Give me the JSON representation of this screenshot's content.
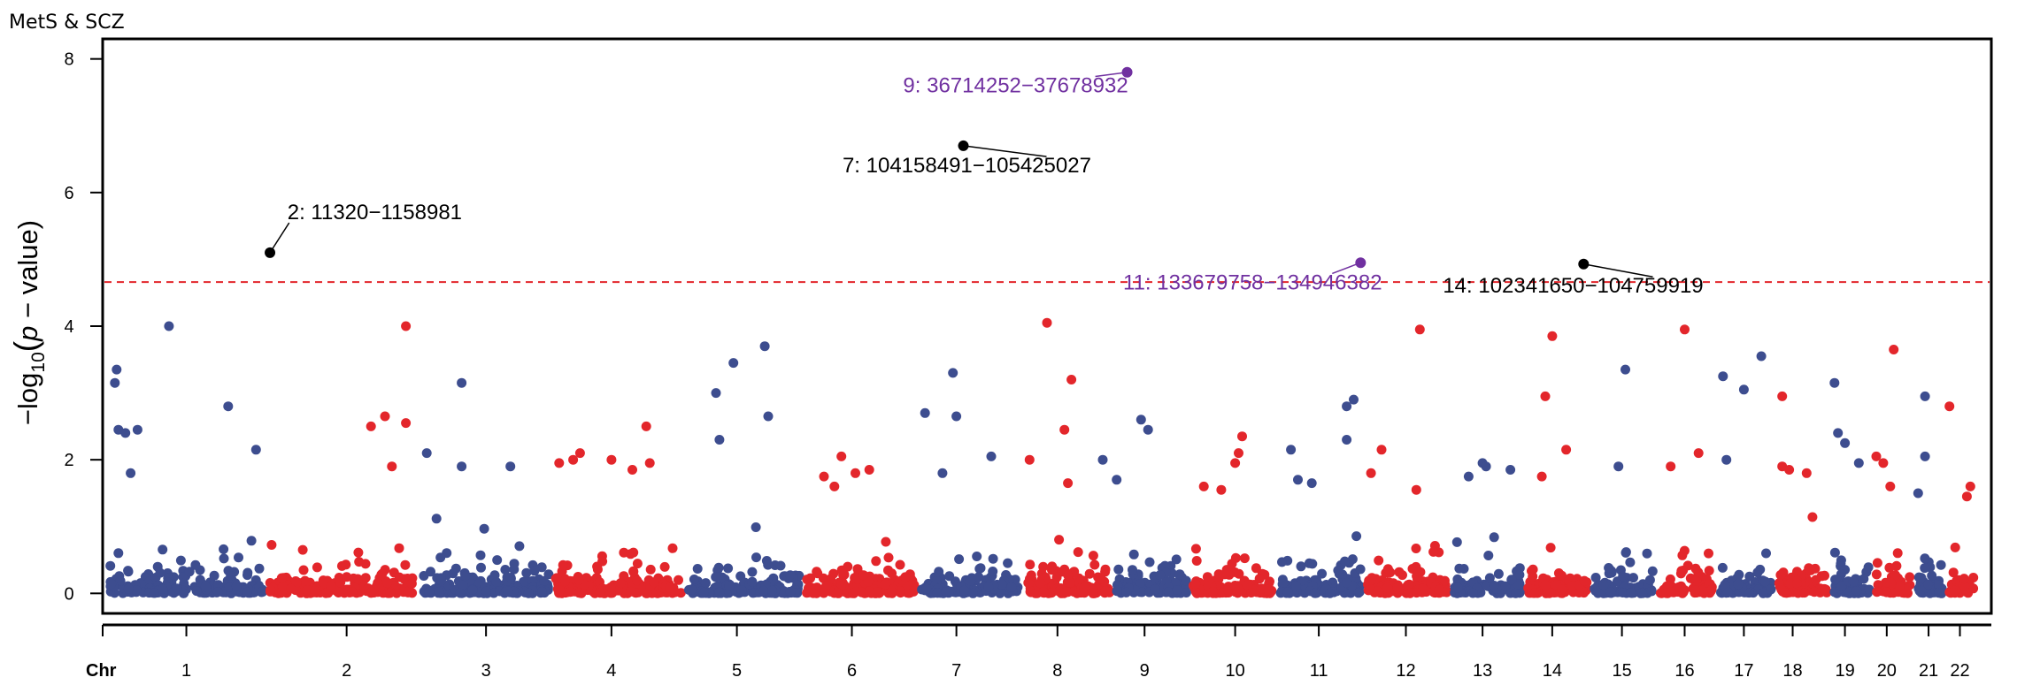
{
  "title": "MetS & SCZ",
  "colors": {
    "odd": "#3d4d8f",
    "even": "#e3262b",
    "highlight": "#7030a0",
    "threshold": "#e3262b",
    "axis": "#000000"
  },
  "chart_data": {
    "type": "scatter",
    "title": "MetS & SCZ",
    "ylabel": "−log10(p − value)",
    "ylabel_parts": {
      "minus": "−",
      "log": "log",
      "sub": "10",
      "open": "(",
      "p": "p",
      "rest": " − value)"
    },
    "xaxis_title": "Chr",
    "ylim": [
      -0.3,
      8.3
    ],
    "yticks": [
      0,
      2,
      4,
      6,
      8
    ],
    "threshold": 4.66,
    "chromosomes": [
      {
        "chr": "1",
        "start": 0,
        "end": 4.6,
        "label_at": 2.3
      },
      {
        "chr": "2",
        "start": 4.6,
        "end": 9.0,
        "label_at": 6.9
      },
      {
        "chr": "3",
        "start": 9.0,
        "end": 12.8,
        "label_at": 10.9
      },
      {
        "chr": "4",
        "start": 12.8,
        "end": 16.6,
        "label_at": 14.5
      },
      {
        "chr": "5",
        "start": 16.6,
        "end": 20.0,
        "label_at": 18.1
      },
      {
        "chr": "6",
        "start": 20.0,
        "end": 23.3,
        "label_at": 21.4
      },
      {
        "chr": "7",
        "start": 23.3,
        "end": 26.3,
        "label_at": 24.4
      },
      {
        "chr": "8",
        "start": 26.3,
        "end": 28.9,
        "label_at": 27.3
      },
      {
        "chr": "9",
        "start": 28.9,
        "end": 31.1,
        "label_at": 29.8
      },
      {
        "chr": "10",
        "start": 31.1,
        "end": 33.6,
        "label_at": 32.4
      },
      {
        "chr": "11",
        "start": 33.6,
        "end": 36.1,
        "label_at": 34.8
      },
      {
        "chr": "12",
        "start": 36.1,
        "end": 38.6,
        "label_at": 37.3
      },
      {
        "chr": "13",
        "start": 38.6,
        "end": 40.7,
        "label_at": 39.5
      },
      {
        "chr": "14",
        "start": 40.7,
        "end": 42.6,
        "label_at": 41.5
      },
      {
        "chr": "15",
        "start": 42.6,
        "end": 44.5,
        "label_at": 43.5
      },
      {
        "chr": "16",
        "start": 44.5,
        "end": 46.2,
        "label_at": 45.3
      },
      {
        "chr": "17",
        "start": 46.2,
        "end": 47.9,
        "label_at": 47.0
      },
      {
        "chr": "18",
        "start": 47.9,
        "end": 49.5,
        "label_at": 48.4
      },
      {
        "chr": "19",
        "start": 49.5,
        "end": 50.7,
        "label_at": 49.9
      },
      {
        "chr": "20",
        "start": 50.7,
        "end": 51.9,
        "label_at": 51.1
      },
      {
        "chr": "21",
        "start": 51.9,
        "end": 52.8,
        "label_at": 52.3
      },
      {
        "chr": "22",
        "start": 52.8,
        "end": 53.7,
        "label_at": 53.2
      }
    ],
    "peaks": [
      {
        "chr": "1",
        "x": 0.3,
        "y": 3.35
      },
      {
        "chr": "1",
        "x": 0.25,
        "y": 3.15
      },
      {
        "chr": "1",
        "x": 0.35,
        "y": 2.45
      },
      {
        "chr": "1",
        "x": 0.55,
        "y": 2.4
      },
      {
        "chr": "1",
        "x": 0.9,
        "y": 2.45
      },
      {
        "chr": "1",
        "x": 0.7,
        "y": 1.8
      },
      {
        "chr": "1",
        "x": 1.8,
        "y": 4.0
      },
      {
        "chr": "1",
        "x": 3.5,
        "y": 2.8
      },
      {
        "chr": "1",
        "x": 4.3,
        "y": 2.15
      },
      {
        "chr": "2",
        "x": 7.6,
        "y": 2.5
      },
      {
        "chr": "2",
        "x": 8.0,
        "y": 2.65
      },
      {
        "chr": "2",
        "x": 8.6,
        "y": 4.0
      },
      {
        "chr": "2",
        "x": 8.6,
        "y": 2.55
      },
      {
        "chr": "2",
        "x": 8.2,
        "y": 1.9
      },
      {
        "chr": "3",
        "x": 9.2,
        "y": 2.1
      },
      {
        "chr": "3",
        "x": 10.2,
        "y": 1.9
      },
      {
        "chr": "3",
        "x": 10.2,
        "y": 3.15
      },
      {
        "chr": "3",
        "x": 11.6,
        "y": 1.9
      },
      {
        "chr": "4",
        "x": 13.0,
        "y": 1.95
      },
      {
        "chr": "4",
        "x": 13.4,
        "y": 2.0
      },
      {
        "chr": "4",
        "x": 13.6,
        "y": 2.1
      },
      {
        "chr": "4",
        "x": 14.5,
        "y": 2.0
      },
      {
        "chr": "4",
        "x": 15.1,
        "y": 1.85
      },
      {
        "chr": "4",
        "x": 15.5,
        "y": 2.5
      },
      {
        "chr": "4",
        "x": 15.6,
        "y": 1.95
      },
      {
        "chr": "5",
        "x": 17.5,
        "y": 3.0
      },
      {
        "chr": "5",
        "x": 18.0,
        "y": 3.45
      },
      {
        "chr": "5",
        "x": 17.6,
        "y": 2.3
      },
      {
        "chr": "5",
        "x": 18.9,
        "y": 3.7
      },
      {
        "chr": "5",
        "x": 19.0,
        "y": 2.65
      },
      {
        "chr": "6",
        "x": 20.6,
        "y": 1.75
      },
      {
        "chr": "6",
        "x": 20.9,
        "y": 1.6
      },
      {
        "chr": "6",
        "x": 21.1,
        "y": 2.05
      },
      {
        "chr": "6",
        "x": 21.5,
        "y": 1.8
      },
      {
        "chr": "6",
        "x": 21.9,
        "y": 1.85
      },
      {
        "chr": "7",
        "x": 23.5,
        "y": 2.7
      },
      {
        "chr": "7",
        "x": 24.3,
        "y": 3.3
      },
      {
        "chr": "7",
        "x": 24.4,
        "y": 2.65
      },
      {
        "chr": "7",
        "x": 24.0,
        "y": 1.8
      },
      {
        "chr": "7",
        "x": 25.4,
        "y": 2.05
      },
      {
        "chr": "8",
        "x": 26.5,
        "y": 2.0
      },
      {
        "chr": "8",
        "x": 27.0,
        "y": 4.05
      },
      {
        "chr": "8",
        "x": 27.7,
        "y": 3.2
      },
      {
        "chr": "8",
        "x": 27.5,
        "y": 2.45
      },
      {
        "chr": "8",
        "x": 27.6,
        "y": 1.65
      },
      {
        "chr": "9",
        "x": 28.6,
        "y": 2.0
      },
      {
        "chr": "9",
        "x": 29.0,
        "y": 1.7
      },
      {
        "chr": "9",
        "x": 29.7,
        "y": 2.6
      },
      {
        "chr": "9",
        "x": 29.9,
        "y": 2.45
      },
      {
        "chr": "10",
        "x": 31.5,
        "y": 1.6
      },
      {
        "chr": "10",
        "x": 32.0,
        "y": 1.55
      },
      {
        "chr": "10",
        "x": 32.6,
        "y": 2.35
      },
      {
        "chr": "10",
        "x": 32.5,
        "y": 2.1
      },
      {
        "chr": "10",
        "x": 32.4,
        "y": 1.95
      },
      {
        "chr": "11",
        "x": 34.0,
        "y": 2.15
      },
      {
        "chr": "11",
        "x": 34.2,
        "y": 1.7
      },
      {
        "chr": "11",
        "x": 34.6,
        "y": 1.65
      },
      {
        "chr": "11",
        "x": 35.6,
        "y": 2.8
      },
      {
        "chr": "11",
        "x": 35.8,
        "y": 2.9
      },
      {
        "chr": "11",
        "x": 35.6,
        "y": 2.3
      },
      {
        "chr": "12",
        "x": 36.3,
        "y": 1.8
      },
      {
        "chr": "12",
        "x": 36.6,
        "y": 2.15
      },
      {
        "chr": "12",
        "x": 37.7,
        "y": 3.95
      },
      {
        "chr": "12",
        "x": 37.6,
        "y": 1.55
      },
      {
        "chr": "13",
        "x": 39.1,
        "y": 1.75
      },
      {
        "chr": "13",
        "x": 39.5,
        "y": 1.95
      },
      {
        "chr": "13",
        "x": 39.6,
        "y": 1.9
      },
      {
        "chr": "13",
        "x": 40.3,
        "y": 1.85
      },
      {
        "chr": "14",
        "x": 41.3,
        "y": 2.95
      },
      {
        "chr": "14",
        "x": 41.5,
        "y": 3.85
      },
      {
        "chr": "14",
        "x": 41.9,
        "y": 2.15
      },
      {
        "chr": "14",
        "x": 41.2,
        "y": 1.75
      },
      {
        "chr": "15",
        "x": 43.6,
        "y": 3.35
      },
      {
        "chr": "15",
        "x": 43.4,
        "y": 1.9
      },
      {
        "chr": "16",
        "x": 45.3,
        "y": 3.95
      },
      {
        "chr": "16",
        "x": 44.9,
        "y": 1.9
      },
      {
        "chr": "16",
        "x": 45.7,
        "y": 2.1
      },
      {
        "chr": "17",
        "x": 46.4,
        "y": 3.25
      },
      {
        "chr": "17",
        "x": 47.0,
        "y": 3.05
      },
      {
        "chr": "17",
        "x": 47.5,
        "y": 3.55
      },
      {
        "chr": "17",
        "x": 46.5,
        "y": 2.0
      },
      {
        "chr": "18",
        "x": 48.1,
        "y": 2.95
      },
      {
        "chr": "18",
        "x": 48.1,
        "y": 1.9
      },
      {
        "chr": "18",
        "x": 48.3,
        "y": 1.85
      },
      {
        "chr": "18",
        "x": 48.8,
        "y": 1.8
      },
      {
        "chr": "19",
        "x": 49.6,
        "y": 3.15
      },
      {
        "chr": "19",
        "x": 49.7,
        "y": 2.4
      },
      {
        "chr": "19",
        "x": 49.9,
        "y": 2.25
      },
      {
        "chr": "19",
        "x": 50.3,
        "y": 1.95
      },
      {
        "chr": "20",
        "x": 50.8,
        "y": 2.05
      },
      {
        "chr": "20",
        "x": 51.0,
        "y": 1.95
      },
      {
        "chr": "20",
        "x": 51.3,
        "y": 3.65
      },
      {
        "chr": "20",
        "x": 51.2,
        "y": 1.6
      },
      {
        "chr": "21",
        "x": 52.0,
        "y": 1.5
      },
      {
        "chr": "21",
        "x": 52.2,
        "y": 2.95
      },
      {
        "chr": "21",
        "x": 52.2,
        "y": 2.05
      },
      {
        "chr": "22",
        "x": 52.9,
        "y": 2.8
      },
      {
        "chr": "22",
        "x": 53.5,
        "y": 1.6
      },
      {
        "chr": "22",
        "x": 53.4,
        "y": 1.45
      }
    ],
    "annotations": [
      {
        "label": "2: 11320−1158981",
        "x": 4.7,
        "y": 5.1,
        "highlight": false,
        "text_x": 5.2,
        "text_y": 5.6,
        "anchor": "start"
      },
      {
        "label": "7: 104158491−105425027",
        "x": 24.6,
        "y": 6.7,
        "highlight": false,
        "text_x": 24.7,
        "text_y": 6.3,
        "anchor": "middle"
      },
      {
        "label": "9: 36714252−37678932",
        "x": 29.3,
        "y": 7.8,
        "highlight": true,
        "text_x": 26.1,
        "text_y": 7.5,
        "anchor": "middle"
      },
      {
        "label": "11: 133679758−134946382",
        "x": 36.0,
        "y": 4.95,
        "highlight": true,
        "text_x": 32.9,
        "text_y": 4.55,
        "anchor": "middle"
      },
      {
        "label": "14: 102341650−104759919",
        "x": 42.4,
        "y": 4.93,
        "highlight": false,
        "text_x": 42.1,
        "text_y": 4.5,
        "anchor": "middle"
      }
    ]
  }
}
